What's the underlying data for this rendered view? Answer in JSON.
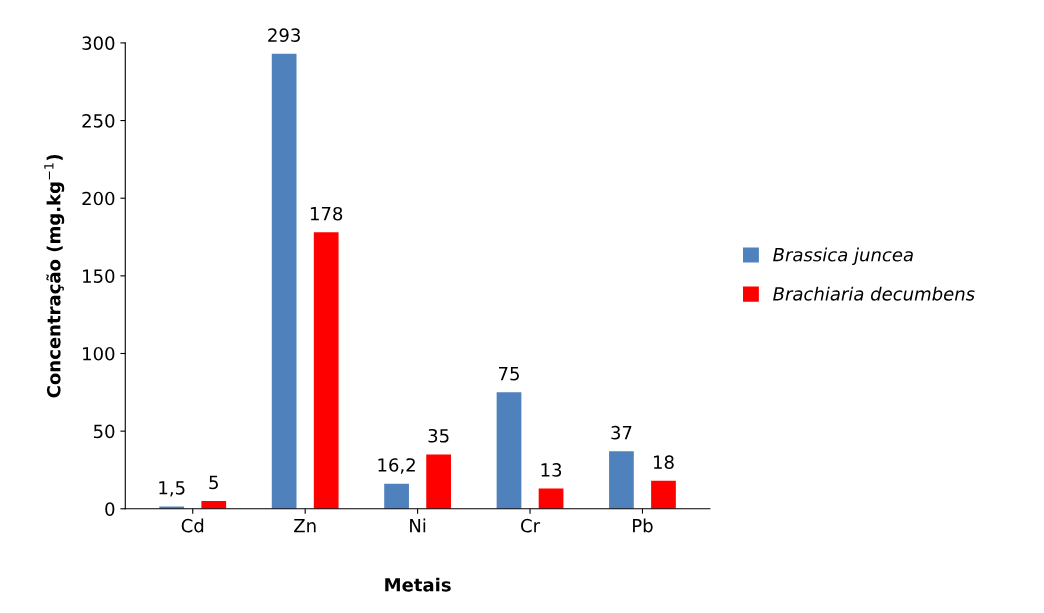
{
  "chart_data": {
    "type": "bar",
    "xlabel": "Metais",
    "ylabel": "Concentração (mg.kg$^{−1}$)",
    "categories": [
      "Cd",
      "Zn",
      "Ni",
      "Cr",
      "Pb"
    ],
    "series": [
      {
        "name": "Brassica juncea",
        "color": "#4f81bd",
        "values": [
          1.5,
          293,
          16.2,
          75,
          37
        ],
        "value_labels": [
          "1,5",
          "293",
          "16,2",
          "75",
          "37"
        ]
      },
      {
        "name": "Brachiaria decumbens",
        "color": "#ff0000",
        "values": [
          5,
          178,
          35,
          13,
          18
        ],
        "value_labels": [
          "5",
          "178",
          "35",
          "13",
          "18"
        ]
      }
    ],
    "ylim": [
      0,
      300
    ],
    "yticks": [
      0,
      50,
      100,
      150,
      200,
      250,
      300
    ],
    "legend": "right"
  }
}
